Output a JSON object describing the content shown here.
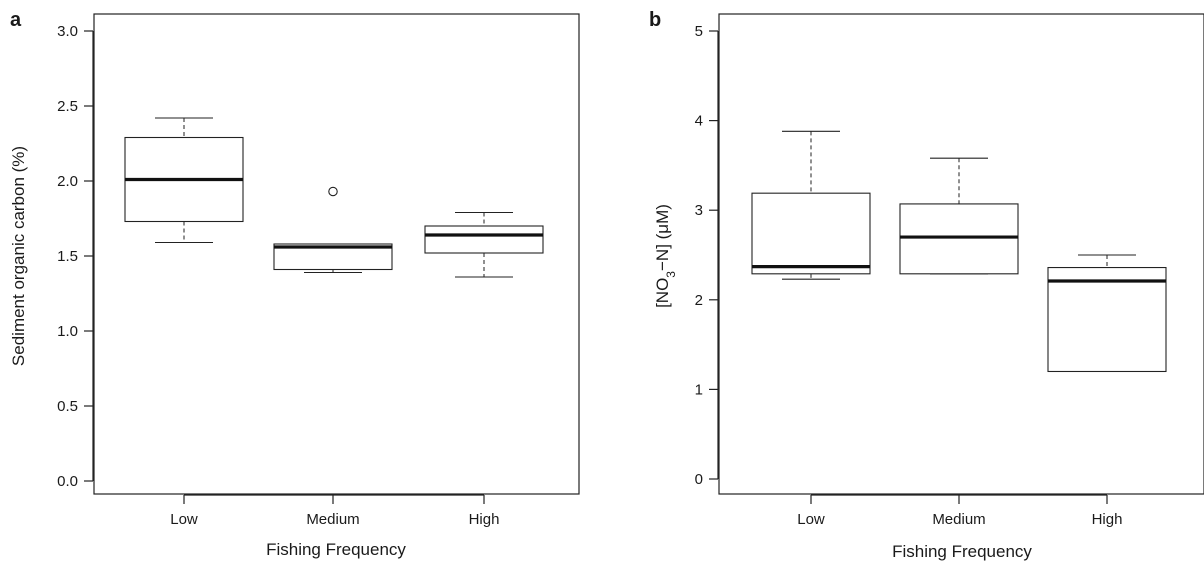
{
  "chart_data": [
    {
      "panel_label": "a",
      "type": "box",
      "categories": [
        "Low",
        "Medium",
        "High"
      ],
      "boxes": [
        {
          "whisker_low": 1.59,
          "q1": 1.73,
          "median": 2.01,
          "q3": 2.29,
          "whisker_high": 2.42,
          "outliers": []
        },
        {
          "whisker_low": 1.39,
          "q1": 1.41,
          "median": 1.56,
          "q3": 1.58,
          "whisker_high": 1.58,
          "outliers": [
            1.93
          ]
        },
        {
          "whisker_low": 1.36,
          "q1": 1.52,
          "median": 1.64,
          "q3": 1.7,
          "whisker_high": 1.79,
          "outliers": []
        }
      ],
      "xlabel": "Fishing Frequency",
      "ylabel": "Sediment organic carbon (%)",
      "ylim": [
        0,
        3
      ],
      "yticks": [
        "0.0",
        "0.5",
        "1.0",
        "1.5",
        "2.0",
        "2.5",
        "3.0"
      ],
      "grid": false
    },
    {
      "panel_label": "b",
      "type": "box",
      "categories": [
        "Low",
        "Medium",
        "High"
      ],
      "boxes": [
        {
          "whisker_low": 2.23,
          "q1": 2.29,
          "median": 2.37,
          "q3": 3.19,
          "whisker_high": 3.88,
          "outliers": []
        },
        {
          "whisker_low": 2.29,
          "q1": 2.29,
          "median": 2.7,
          "q3": 3.07,
          "whisker_high": 3.58,
          "outliers": []
        },
        {
          "whisker_low": 1.2,
          "q1": 1.2,
          "median": 2.21,
          "q3": 2.36,
          "whisker_high": 2.5,
          "outliers": []
        }
      ],
      "xlabel": "Fishing Frequency",
      "ylabel": "[NO3−N] (μM)",
      "ylabel_parts": [
        "[NO",
        "3",
        "−N] (μM)"
      ],
      "ylim": [
        0,
        5
      ],
      "yticks": [
        "0",
        "1",
        "2",
        "3",
        "4",
        "5"
      ],
      "grid": false
    }
  ]
}
